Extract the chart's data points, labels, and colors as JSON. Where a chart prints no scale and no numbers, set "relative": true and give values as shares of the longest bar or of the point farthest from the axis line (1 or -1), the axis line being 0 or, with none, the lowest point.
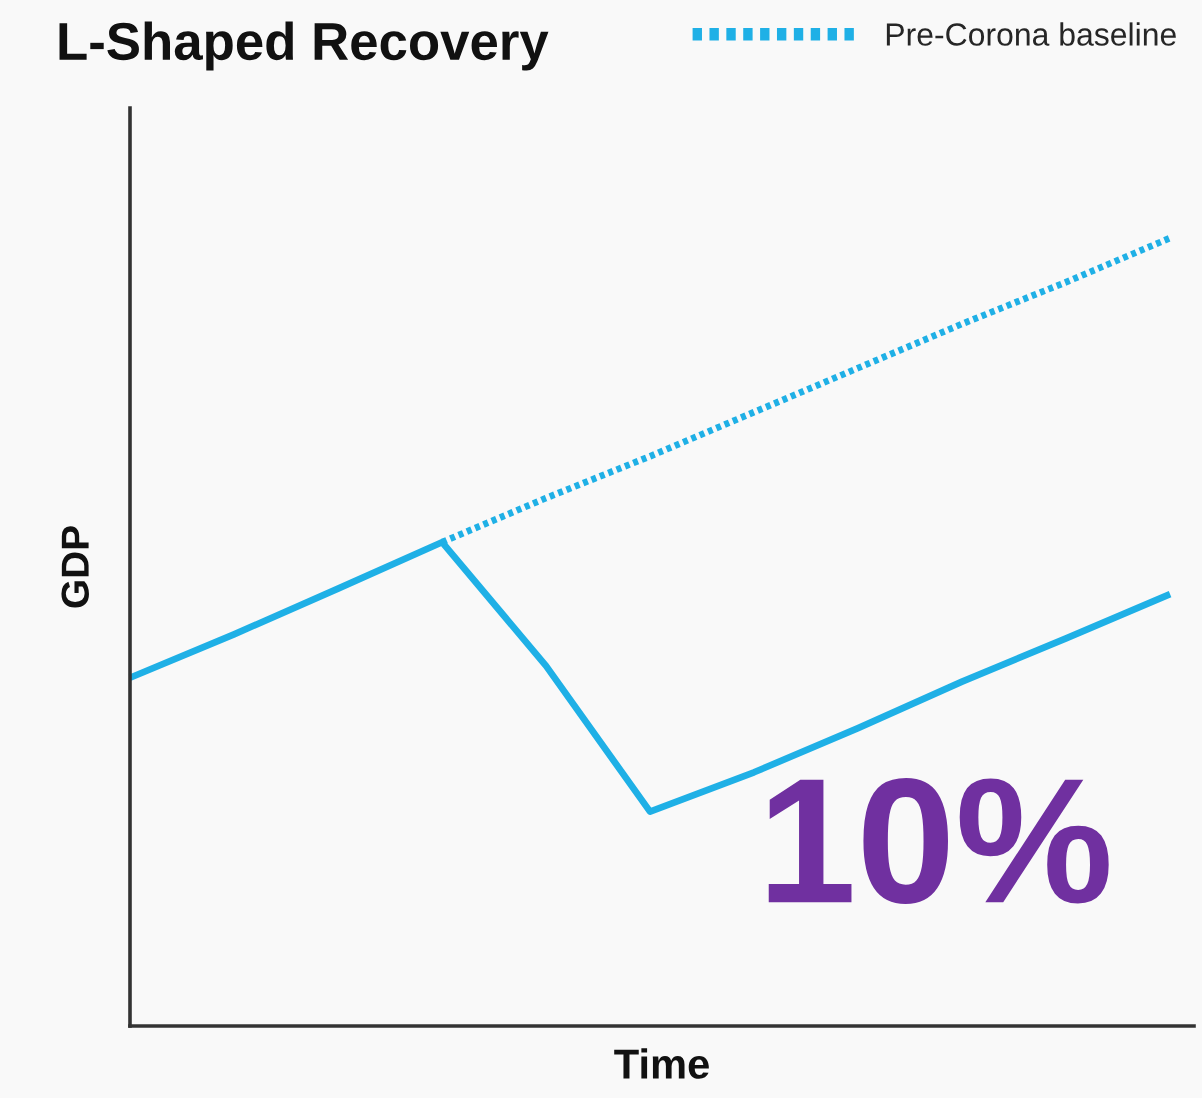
{
  "chart_data": {
    "type": "line",
    "title": "L-Shaped Recovery",
    "xlabel": "Time",
    "ylabel": "GDP",
    "categories": [
      null,
      null,
      null,
      null,
      null,
      null,
      null,
      null,
      null,
      null,
      null
    ],
    "relative": true,
    "series": [
      {
        "color": "#1fb0e6",
        "line_style": "solid",
        "values": [
          0.442,
          0.497,
          0.555,
          0.614,
          0.457,
          0.272,
          0.322,
          0.378,
          0.437,
          0.492,
          0.548
        ]
      },
      {
        "name": "Pre-Corona baseline",
        "color": "#1fb0e6",
        "line_style": "dotted",
        "values": [
          null,
          null,
          null,
          0.614,
          0.67,
          0.723,
          0.779,
          0.835,
          0.891,
          0.944,
          1.0
        ]
      }
    ],
    "legend": "top right",
    "tick_labels": false,
    "annotations": [
      "10%"
    ]
  }
}
